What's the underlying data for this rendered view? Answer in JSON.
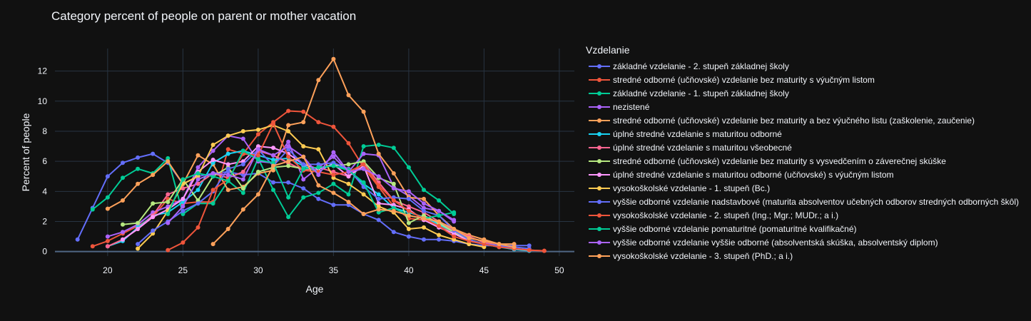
{
  "chart_data": {
    "type": "line",
    "title": "Category percent of people on parent or mother vacation",
    "xlabel": "Age",
    "ylabel": "Percent of people",
    "xlim": [
      16.5,
      51
    ],
    "ylim": [
      -0.3,
      13.5
    ],
    "xticks": [
      20,
      25,
      30,
      35,
      40,
      45,
      50
    ],
    "yticks": [
      0,
      2,
      4,
      6,
      8,
      10,
      12
    ],
    "grid": true,
    "legend_title": "Vzdelanie",
    "legend_position": "right",
    "series": [
      {
        "name": "základné vzdelanie - 2. stupeň základnej školy",
        "color": "#636efa",
        "x": [
          18,
          19,
          20,
          21,
          22,
          23,
          24,
          25,
          26,
          27,
          28,
          29,
          30,
          31,
          32,
          33,
          34,
          35,
          36,
          37,
          38,
          39,
          40,
          41,
          42,
          43,
          44,
          45,
          46,
          47,
          48
        ],
        "y": [
          0.8,
          2.9,
          5.0,
          5.9,
          6.25,
          6.5,
          5.9,
          4.5,
          5.0,
          5.2,
          5.3,
          5.1,
          5.2,
          4.6,
          4.6,
          4.2,
          3.5,
          3.1,
          3.1,
          2.5,
          2.1,
          1.3,
          1.0,
          0.8,
          0.8,
          0.7,
          0.5,
          0.4,
          0.4,
          0.4,
          0.4
        ]
      },
      {
        "name": "stredné odborné (učňovské) vzdelanie bez maturity s výučným listom",
        "color": "#ef553b",
        "x": [
          19,
          20,
          21,
          22,
          23,
          24,
          25,
          26,
          27,
          28,
          29,
          30,
          31,
          32,
          33,
          34,
          35,
          36,
          37,
          38,
          39,
          40,
          41,
          42,
          43,
          44,
          45,
          46,
          47,
          48,
          49
        ],
        "y": [
          0.35,
          0.7,
          1.2,
          1.7,
          2.3,
          3.5,
          3.2,
          3.3,
          3.3,
          6.8,
          6.5,
          7.8,
          8.6,
          9.35,
          9.3,
          8.6,
          8.3,
          7.2,
          5.6,
          4.3,
          3.0,
          2.2,
          2.1,
          1.7,
          1.2,
          0.8,
          0.5,
          0.3,
          0.2,
          0.1,
          0.05
        ]
      },
      {
        "name": "základné vzdelanie - 1. stupeň základnej školy",
        "color": "#00cc96",
        "x": [
          19,
          20,
          21,
          22,
          23,
          24,
          25,
          26,
          27,
          28,
          29,
          30,
          31,
          32,
          33,
          34,
          35,
          36,
          37,
          38,
          39,
          40,
          41,
          42,
          43
        ],
        "y": [
          2.8,
          3.6,
          4.9,
          5.5,
          5.2,
          6.2,
          2.5,
          3.2,
          3.2,
          4.7,
          3.9,
          6.2,
          4.1,
          2.3,
          3.6,
          3.9,
          4.5,
          3.8,
          7.0,
          7.1,
          6.9,
          5.6,
          4.1,
          3.4,
          2.5
        ]
      },
      {
        "name": "nezistené",
        "color": "#ab63fa",
        "x": [
          20,
          21,
          22,
          23,
          24,
          25,
          26,
          27,
          28,
          29,
          30,
          31,
          32,
          33,
          34,
          35,
          36,
          37,
          38,
          39,
          40,
          41,
          42,
          43
        ],
        "y": [
          1.0,
          1.3,
          1.8,
          2.6,
          3.0,
          3.5,
          5.6,
          6.7,
          7.7,
          7.5,
          6.0,
          5.9,
          7.3,
          4.8,
          5.6,
          6.3,
          5.3,
          6.5,
          6.4,
          4.3,
          3.7,
          2.9,
          2.7,
          2.0
        ]
      },
      {
        "name": "stredné odborné (učňovské) vzdelanie bez maturity a bez výučného listu (zaškolenie, zaučenie)",
        "color": "#ffa15a",
        "x": [
          20,
          21,
          22,
          23,
          24,
          25,
          26,
          27,
          28,
          29,
          30,
          31,
          32,
          33,
          34,
          35,
          36,
          37,
          38,
          39,
          40,
          41,
          42,
          43,
          44,
          45,
          46,
          47
        ],
        "y": [
          2.85,
          3.4,
          4.5,
          5.1,
          6.0,
          4.5,
          6.4,
          5.8,
          4.1,
          4.3,
          5.2,
          5.4,
          8.4,
          8.6,
          11.4,
          12.8,
          10.4,
          9.3,
          6.5,
          5.2,
          3.6,
          3.5,
          2.4,
          1.5,
          1.1,
          0.8,
          0.5,
          0.5
        ]
      },
      {
        "name": "úplné stredné vzdelanie s maturitou odborné",
        "color": "#19d3f3",
        "x": [
          20,
          21,
          22,
          23,
          24,
          25,
          26,
          27,
          28,
          29,
          30,
          31,
          32,
          33,
          34,
          35,
          36,
          37,
          38,
          39,
          40,
          41,
          42,
          43,
          44,
          45,
          46,
          47,
          48
        ],
        "y": [
          0.35,
          0.7,
          1.6,
          2.4,
          2.6,
          3.3,
          4.1,
          5.9,
          6.5,
          6.7,
          6.4,
          6.1,
          6.2,
          5.7,
          5.3,
          5.9,
          5.4,
          4.5,
          3.8,
          2.9,
          2.6,
          2.3,
          1.8,
          1.3,
          0.8,
          0.5,
          0.3,
          0.15,
          0.05
        ]
      },
      {
        "name": "úplné stredné vzdelanie s maturitou všeobecné",
        "color": "#ff6692",
        "x": [
          20,
          21,
          22,
          23,
          24,
          25,
          26,
          27,
          28,
          29,
          30,
          31,
          32,
          33,
          34,
          35,
          36,
          37,
          38,
          39,
          40,
          41,
          42,
          43,
          44,
          45,
          46,
          47,
          48
        ],
        "y": [
          0.35,
          0.8,
          1.5,
          2.4,
          3.8,
          4.2,
          4.5,
          5.2,
          4.9,
          5.3,
          6.7,
          6.4,
          5.9,
          5.4,
          5.6,
          5.3,
          5.0,
          5.9,
          4.6,
          3.4,
          3.0,
          2.6,
          2.0,
          1.4,
          1.0,
          0.6,
          0.4,
          0.2,
          0.1
        ]
      },
      {
        "name": "stredné odborné (učňovské) vzdelanie bez maturity s vysvedčením o záverečnej skúške",
        "color": "#b6e880",
        "x": [
          21,
          22,
          23,
          24,
          25,
          26,
          27,
          28,
          29,
          30,
          31,
          32,
          33,
          34,
          35,
          36,
          37,
          38,
          39,
          40,
          41,
          42,
          43,
          44,
          45
        ],
        "y": [
          1.8,
          1.9,
          3.2,
          3.3,
          4.8,
          3.4,
          5.0,
          5.6,
          4.2,
          5.3,
          5.6,
          5.7,
          5.5,
          5.6,
          5.7,
          5.8,
          6.0,
          4.9,
          4.5,
          1.9,
          2.4,
          1.9,
          1.3,
          0.8,
          0.5
        ]
      },
      {
        "name": "úplné stredné vzdelanie s maturitou odborné (učňovské) s výučným listom",
        "color": "#ff97ff",
        "x": [
          21,
          22,
          23,
          24,
          25,
          26,
          27,
          28,
          29,
          30,
          31,
          32,
          33,
          34,
          35,
          36,
          37,
          38,
          39,
          40,
          41,
          42,
          43,
          44,
          45
        ],
        "y": [
          0.8,
          1.5,
          2.3,
          2.8,
          3.5,
          5.3,
          6.1,
          5.8,
          6.0,
          7.0,
          6.9,
          6.5,
          5.8,
          5.5,
          5.8,
          5.0,
          5.7,
          3.2,
          3.1,
          2.8,
          2.1,
          1.6,
          1.2,
          0.7,
          0.5
        ]
      },
      {
        "name": "vysokoškolské vzdelanie - 1. stupeň (Bc.)",
        "color": "#fecb52",
        "x": [
          22,
          23,
          24,
          25,
          26,
          27,
          28,
          29,
          30,
          31,
          32,
          33,
          34,
          35,
          36,
          37,
          38,
          39,
          40,
          41,
          42,
          43,
          44,
          45
        ],
        "y": [
          0.2,
          1.2,
          2.7,
          4.5,
          5.0,
          7.1,
          7.7,
          8.0,
          8.1,
          8.4,
          8.0,
          7.0,
          6.8,
          4.9,
          4.5,
          3.8,
          3.0,
          2.6,
          1.5,
          1.6,
          1.1,
          0.8,
          0.5,
          0.3
        ]
      },
      {
        "name": "vyššie odborné vzdelanie nadstavbové (maturita absolventov učebných odborov stredných odborných škôl)",
        "color": "#636efa",
        "x": [
          22,
          23,
          24,
          25,
          26,
          27,
          28,
          29,
          30,
          31,
          32,
          33,
          34,
          35,
          36,
          37,
          38,
          39,
          40,
          41,
          42,
          43,
          44,
          45,
          46,
          47,
          48
        ],
        "y": [
          0.5,
          1.4,
          2.0,
          2.7,
          3.2,
          4.0,
          5.5,
          5.8,
          6.8,
          5.7,
          6.8,
          5.8,
          5.8,
          5.9,
          5.5,
          4.3,
          3.5,
          3.6,
          3.5,
          2.7,
          2.4,
          1.4,
          0.8,
          0.5,
          0.4,
          0.3,
          0.2
        ]
      },
      {
        "name": "vysokoškolské vzdelanie - 2. stupeň (Ing.; Mgr.; MUDr.; a i.)",
        "color": "#ef553b",
        "x": [
          24,
          25,
          26,
          27,
          28,
          29,
          30,
          31,
          32,
          33,
          34,
          35,
          36,
          37,
          38,
          39,
          40,
          41,
          42,
          43,
          44,
          45,
          46,
          47,
          48,
          49
        ],
        "y": [
          0.1,
          0.6,
          1.6,
          4.1,
          4.8,
          6.5,
          6.4,
          8.5,
          6.3,
          5.4,
          5.3,
          5.1,
          5.3,
          5.8,
          4.4,
          3.4,
          2.7,
          2.2,
          1.7,
          1.0,
          0.7,
          0.5,
          0.3,
          0.2,
          0.1,
          0.05
        ]
      },
      {
        "name": "vyššie odborné vzdelanie pomaturitné (pomaturitné kvalifikačné)",
        "color": "#00cc96",
        "x": [
          24,
          25,
          26,
          27,
          28,
          29,
          30,
          31,
          32,
          33,
          34,
          35,
          36,
          37,
          38,
          39,
          40,
          41,
          42,
          43
        ],
        "y": [
          2.5,
          4.8,
          5.2,
          5.0,
          4.7,
          6.7,
          6.1,
          5.9,
          3.6,
          5.5,
          5.6,
          5.7,
          5.4,
          4.6,
          2.6,
          2.9,
          2.4,
          2.2,
          2.4,
          2.6
        ]
      },
      {
        "name": "vyššie odborné vzdelanie vyššie odborné (absolventská skúška, absolventský diplom)",
        "color": "#ab63fa",
        "x": [
          24,
          25,
          26,
          27,
          28,
          29,
          30,
          31,
          32,
          33,
          34,
          35,
          36,
          37,
          38,
          39,
          40,
          41,
          42,
          43
        ],
        "y": [
          1.9,
          3.0,
          4.8,
          5.2,
          5.1,
          4.8,
          6.8,
          6.4,
          7.0,
          6.3,
          5.1,
          6.6,
          5.3,
          5.5,
          5.0,
          4.2,
          4.0,
          3.2,
          2.7,
          2.1
        ]
      },
      {
        "name": "vysokoškolské vzdelanie - 3. stupeň (PhD.; a i.)",
        "color": "#ffa15a",
        "x": [
          27,
          28,
          29,
          30,
          31,
          32,
          33,
          34,
          35,
          36,
          37,
          38,
          39,
          40,
          41,
          42,
          43,
          44,
          45,
          46,
          47
        ],
        "y": [
          0.5,
          1.5,
          2.8,
          3.8,
          5.7,
          6.0,
          6.3,
          4.4,
          3.9,
          3.3,
          2.5,
          2.8,
          2.7,
          2.4,
          2.2,
          2.0,
          1.5,
          0.9,
          0.7,
          0.5,
          0.3
        ]
      }
    ]
  }
}
